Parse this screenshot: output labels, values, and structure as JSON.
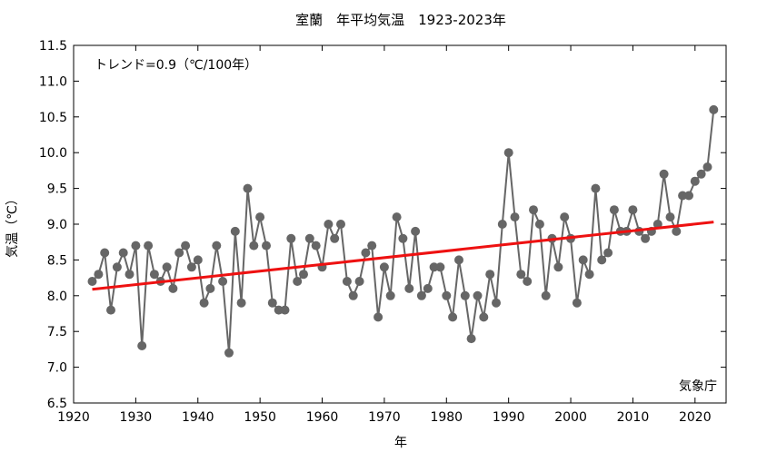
{
  "chart_data": {
    "type": "line",
    "title": "室蘭　年平均気温　1923-2023年",
    "xlabel": "年",
    "ylabel": "気温（℃）",
    "annotation": "トレンド=0.9（℃/100年）",
    "source": "気象庁",
    "xlim": [
      1920,
      2025
    ],
    "ylim": [
      6.5,
      11.5
    ],
    "x_ticks": [
      1920,
      1930,
      1940,
      1950,
      1960,
      1970,
      1980,
      1990,
      2000,
      2010,
      2020
    ],
    "y_ticks": [
      6.5,
      7.0,
      7.5,
      8.0,
      8.5,
      9.0,
      9.5,
      10.0,
      10.5,
      11.0,
      11.5
    ],
    "grid": false,
    "series": [
      {
        "color": "#666666",
        "x": [
          1923,
          1924,
          1925,
          1926,
          1927,
          1928,
          1929,
          1930,
          1931,
          1932,
          1933,
          1934,
          1935,
          1936,
          1937,
          1938,
          1939,
          1940,
          1941,
          1942,
          1943,
          1944,
          1945,
          1946,
          1947,
          1948,
          1949,
          1950,
          1951,
          1952,
          1953,
          1954,
          1955,
          1956,
          1957,
          1958,
          1959,
          1960,
          1961,
          1962,
          1963,
          1964,
          1965,
          1966,
          1967,
          1968,
          1969,
          1970,
          1971,
          1972,
          1973,
          1974,
          1975,
          1976,
          1977,
          1978,
          1979,
          1980,
          1981,
          1982,
          1983,
          1984,
          1985,
          1986,
          1987,
          1988,
          1989,
          1990,
          1991,
          1992,
          1993,
          1994,
          1995,
          1996,
          1997,
          1998,
          1999,
          2000,
          2001,
          2002,
          2003,
          2004,
          2005,
          2006,
          2007,
          2008,
          2009,
          2010,
          2011,
          2012,
          2013,
          2014,
          2015,
          2016,
          2017,
          2018,
          2019,
          2020,
          2021,
          2022,
          2023
        ],
        "y": [
          8.2,
          8.3,
          8.6,
          7.8,
          8.4,
          8.6,
          8.3,
          8.7,
          7.3,
          8.7,
          8.3,
          8.2,
          8.4,
          8.1,
          8.6,
          8.7,
          8.4,
          8.5,
          7.9,
          8.1,
          8.7,
          8.2,
          7.2,
          8.9,
          7.9,
          9.5,
          8.7,
          9.1,
          8.7,
          7.9,
          7.8,
          7.8,
          8.8,
          8.2,
          8.3,
          8.8,
          8.7,
          8.4,
          9.0,
          8.8,
          9.0,
          8.2,
          8.0,
          8.2,
          8.6,
          8.7,
          7.7,
          8.4,
          8.0,
          9.1,
          8.8,
          8.1,
          8.9,
          8.0,
          8.1,
          8.4,
          8.4,
          8.0,
          7.7,
          8.5,
          8.0,
          7.4,
          8.0,
          7.7,
          8.3,
          7.9,
          9.0,
          10.0,
          9.1,
          8.3,
          8.2,
          9.2,
          9.0,
          8.0,
          8.8,
          8.4,
          9.1,
          8.8,
          7.9,
          8.5,
          8.3,
          9.5,
          8.5,
          8.6,
          9.2,
          8.9,
          8.9,
          9.2,
          8.9,
          8.8,
          8.9,
          9.0,
          9.7,
          9.1,
          8.9,
          9.4,
          9.4,
          9.6,
          9.7,
          9.8,
          10.6
        ]
      }
    ],
    "trend": {
      "color": "#ee1111",
      "x": [
        1923,
        2023
      ],
      "y": [
        8.09,
        9.03
      ]
    }
  }
}
